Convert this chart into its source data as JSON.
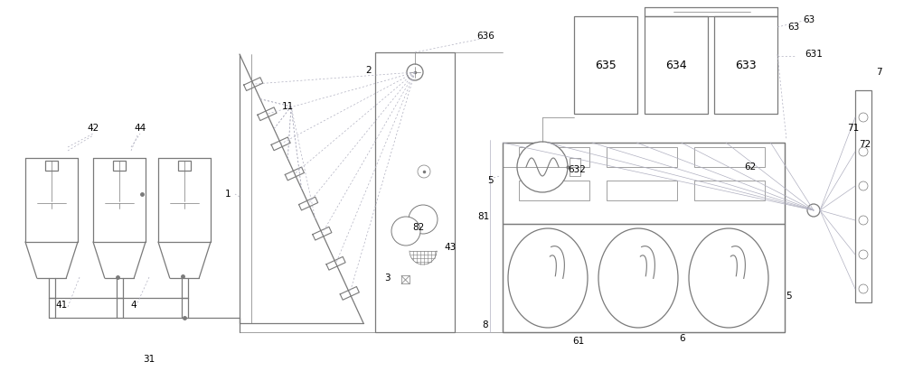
{
  "bg_color": "#ffffff",
  "line_color": "#7a7a7a",
  "label_color": "#000000",
  "annotation_color": "#b0b0c0",
  "lw": 0.9,
  "tlw": 0.5
}
